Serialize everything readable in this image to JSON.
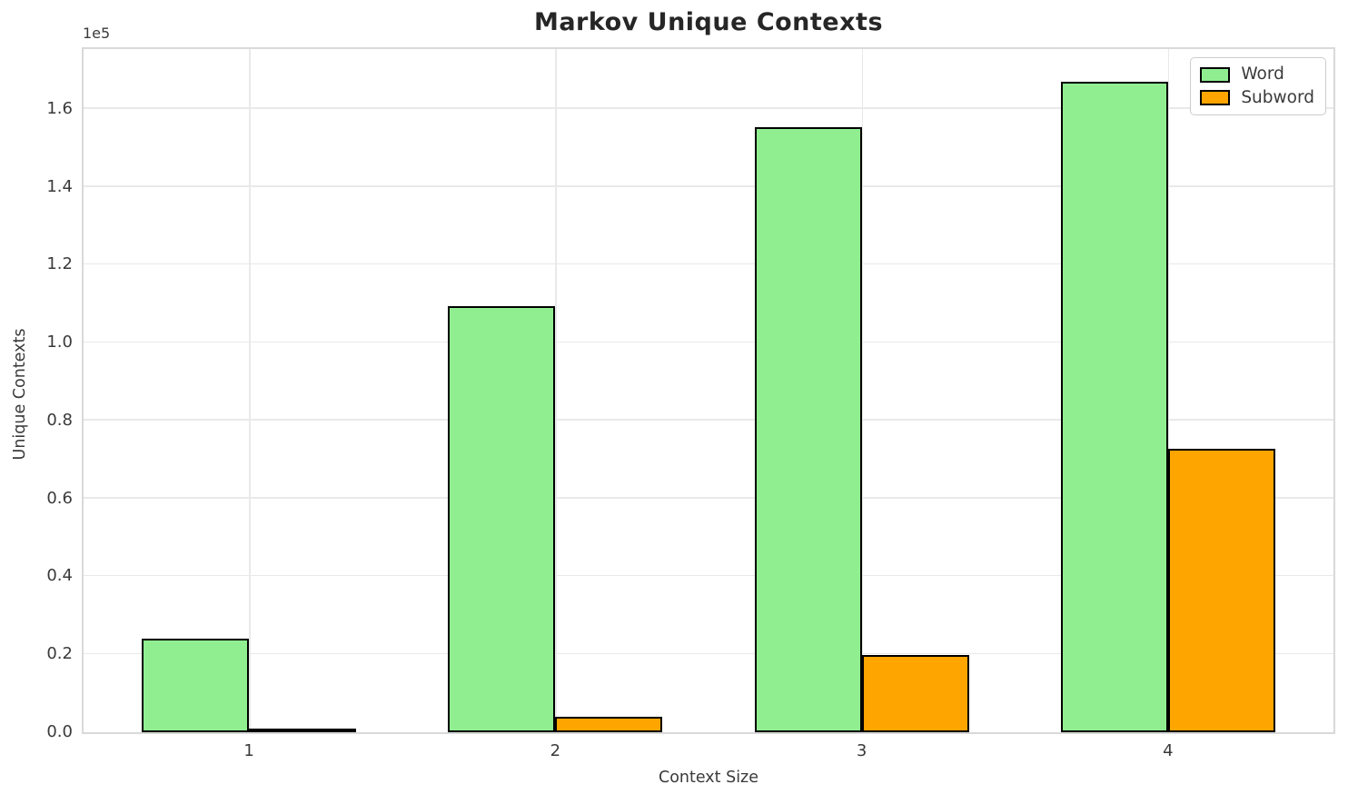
{
  "chart_data": {
    "type": "bar",
    "title": "Markov Unique Contexts",
    "xlabel": "Context Size",
    "ylabel": "Unique Contexts",
    "y_offset_label": "1e5",
    "categories": [
      "1",
      "2",
      "3",
      "4"
    ],
    "series": [
      {
        "name": "Word",
        "color": "#90ee90",
        "edge_color": "#000000",
        "values": [
          24000,
          109400,
          155200,
          167000
        ]
      },
      {
        "name": "Subword",
        "color": "#ffa500",
        "edge_color": "#000000",
        "values": [
          600,
          4000,
          19800,
          72700
        ]
      }
    ],
    "bar_width": 0.35,
    "xlim": [
      0.46,
      4.54
    ],
    "ylim": [
      0,
      175350
    ],
    "yticks": [
      0,
      20000,
      40000,
      60000,
      80000,
      100000,
      120000,
      140000,
      160000
    ],
    "ytick_labels": [
      "0.0",
      "0.2",
      "0.4",
      "0.6",
      "0.8",
      "1.0",
      "1.2",
      "1.4",
      "1.6"
    ],
    "grid": true,
    "legend_position": "upper right",
    "colors": {
      "background": "#ffffff",
      "grid": "#e9e9e9",
      "spine": "#d9d9d9",
      "bar_edge": "#000000",
      "text": "#3a3a3a",
      "title": "#262626",
      "legend_border": "#cccccc"
    }
  }
}
